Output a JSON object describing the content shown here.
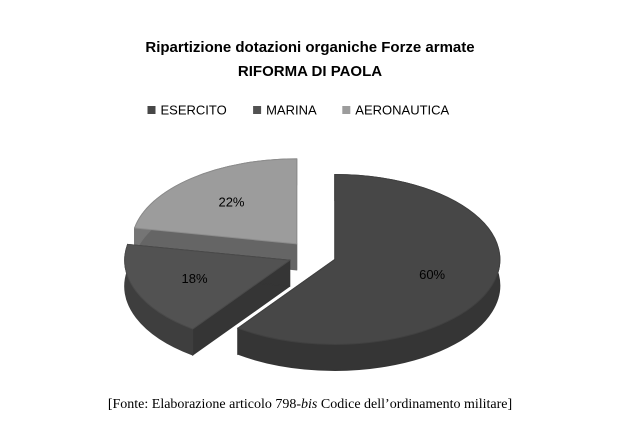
{
  "chart_data": {
    "type": "pie3d",
    "title": "Ripartizione dotazioni organiche Forze armate",
    "subtitle": "RIFORMA DI PAOLA",
    "categories": [
      "ESERCITO",
      "MARINA",
      "AERONAUTICA"
    ],
    "series": [
      {
        "values": [
          60,
          18,
          22
        ],
        "value_labels": [
          "60%",
          "18%",
          "22%"
        ],
        "colors": [
          "#474747",
          "#525252",
          "#9c9c9c"
        ]
      }
    ],
    "legend": "top"
  },
  "source": {
    "before": "[Fonte: Elaborazione articolo 798-",
    "italic": "bis",
    "after": " Codice dell’ordinamento militare]"
  }
}
